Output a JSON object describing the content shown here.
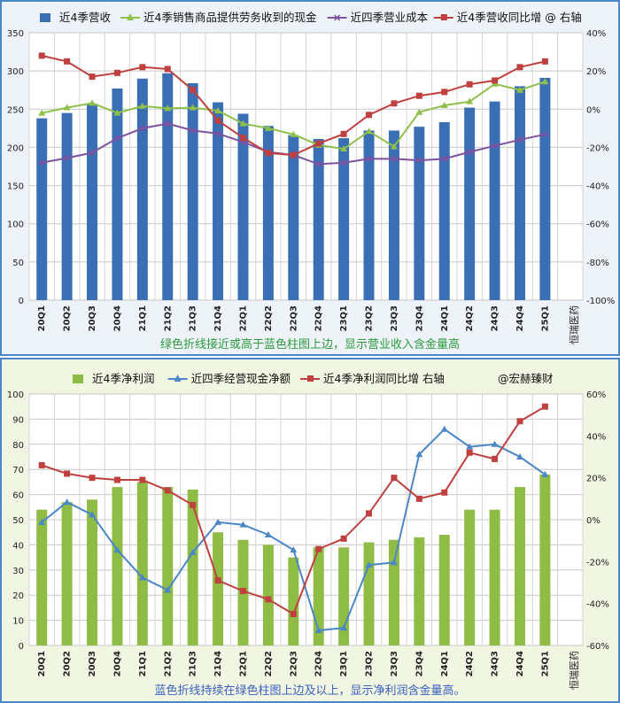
{
  "chart_data": [
    {
      "type": "bar+line",
      "categories": [
        "20Q1",
        "20Q2",
        "20Q3",
        "20Q4",
        "21Q1",
        "21Q2",
        "21Q3",
        "21Q4",
        "22Q1",
        "22Q2",
        "22Q3",
        "22Q4",
        "23Q1",
        "23Q2",
        "23Q3",
        "23Q4",
        "24Q1",
        "24Q2",
        "24Q3",
        "24Q4",
        "25Q1"
      ],
      "y_left": {
        "range": [
          0,
          350
        ],
        "ticks": [
          "0",
          "50",
          "100",
          "150",
          "200",
          "250",
          "300",
          "350"
        ]
      },
      "y_right": {
        "range": [
          -100,
          40
        ],
        "ticks": [
          "-100%",
          "-80%",
          "-60%",
          "-40%",
          "-20%",
          "0%",
          "20%",
          "40%"
        ]
      },
      "grid": true,
      "legend_position": "top",
      "series": [
        {
          "name": "近4季营收",
          "kind": "bar",
          "axis": "left",
          "color": "#3a6fb5",
          "values": [
            238,
            245,
            257,
            277,
            290,
            297,
            284,
            259,
            244,
            228,
            216,
            211,
            212,
            222,
            222,
            227,
            233,
            252,
            260,
            280,
            291
          ]
        },
        {
          "name": "近4季销售商品提供劳务收到的现金",
          "kind": "line",
          "axis": "left",
          "color": "#8fc04a",
          "marker": "triangle",
          "values": [
            245,
            252,
            258,
            245,
            254,
            251,
            252,
            248,
            231,
            225,
            217,
            203,
            198,
            221,
            201,
            246,
            255,
            260,
            283,
            275,
            286
          ]
        },
        {
          "name": "近四季营业成本",
          "kind": "line",
          "axis": "left",
          "color": "#7d52a0",
          "marker": "x",
          "values": [
            180,
            186,
            193,
            212,
            225,
            231,
            222,
            218,
            207,
            194,
            190,
            178,
            180,
            185,
            185,
            183,
            185,
            194,
            202,
            210,
            217
          ]
        },
        {
          "name": "近4季营收同比增 @ 右轴",
          "kind": "line",
          "axis": "right",
          "color": "#c0403f",
          "marker": "square",
          "values": [
            28,
            25,
            17,
            19,
            22,
            21,
            10,
            -6,
            -15,
            -23,
            -24,
            -18,
            -13,
            -3,
            3,
            7,
            9,
            13,
            15,
            22,
            25
          ]
        }
      ],
      "watermark": "恒瑞医药",
      "annotation": "绿色折线接近或高于蓝色柱图上边，显示营业收入含金量高"
    },
    {
      "type": "bar+line",
      "categories": [
        "20Q1",
        "20Q2",
        "20Q3",
        "20Q4",
        "21Q1",
        "21Q2",
        "21Q3",
        "21Q4",
        "22Q1",
        "22Q2",
        "22Q3",
        "22Q4",
        "23Q1",
        "23Q2",
        "23Q3",
        "23Q4",
        "24Q1",
        "24Q2",
        "24Q3",
        "24Q4",
        "25Q1"
      ],
      "y_left": {
        "range": [
          0,
          100
        ],
        "ticks": [
          "0",
          "10",
          "20",
          "30",
          "40",
          "50",
          "60",
          "70",
          "80",
          "90",
          "100"
        ]
      },
      "y_right": {
        "range": [
          -60,
          60
        ],
        "ticks": [
          "-60%",
          "-40%",
          "-20%",
          "0%",
          "20%",
          "40%",
          "60%"
        ]
      },
      "grid": true,
      "legend_position": "top",
      "series": [
        {
          "name": "近4季净利润",
          "kind": "bar",
          "axis": "left",
          "color": "#8fbc45",
          "values": [
            54,
            57,
            58,
            63,
            65,
            63,
            62,
            45,
            42,
            40,
            35,
            39,
            39,
            41,
            42,
            43,
            44,
            54,
            54,
            63,
            68
          ]
        },
        {
          "name": "近四季经营现金净额",
          "kind": "line",
          "axis": "left",
          "color": "#4a86c8",
          "marker": "triangle",
          "values": [
            49,
            57,
            52,
            38,
            27,
            22,
            37,
            49,
            48,
            44,
            38,
            6,
            7,
            32,
            33,
            76,
            86,
            79,
            80,
            75,
            68
          ]
        },
        {
          "name": "近4季净利润同比增 右轴",
          "kind": "line",
          "axis": "right",
          "color": "#c0403f",
          "marker": "square",
          "values": [
            26,
            22,
            20,
            19,
            19,
            14,
            7,
            -29,
            -34,
            -38,
            -45,
            -14,
            -9,
            3,
            20,
            10,
            13,
            32,
            29,
            47,
            54
          ]
        }
      ],
      "credit": "@宏赫臻财",
      "watermark": "恒瑞医药",
      "annotation": "蓝色折线持续在绿色柱图上边及以上，显示净利润含金量高。"
    }
  ]
}
